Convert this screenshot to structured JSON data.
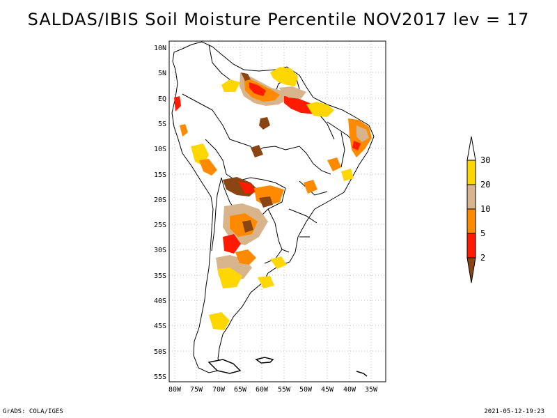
{
  "title": "SALDAS/IBIS Soil Moisture Percentile NOV2017 lev = 17",
  "footer": {
    "left": "GrADS: COLA/IGES",
    "right": "2021-05-12-19:23"
  },
  "axes": {
    "lat_labels": [
      "10N",
      "5N",
      "EQ",
      "5S",
      "10S",
      "15S",
      "20S",
      "25S",
      "30S",
      "35S",
      "40S",
      "45S",
      "50S",
      "55S"
    ],
    "lon_labels": [
      "80W",
      "75W",
      "70W",
      "65W",
      "60W",
      "55W",
      "50W",
      "45W",
      "40W",
      "35W"
    ]
  },
  "legend": {
    "labels": [
      "30",
      "20",
      "10",
      "5",
      "2"
    ],
    "colors": {
      "c30": "#ffd700",
      "c20": "#d8b48c",
      "c10": "#ff8a00",
      "c5": "#ff1a00",
      "c2": "#8b4513",
      "top": "#ffffff"
    }
  },
  "colors": {
    "gridline": "#bbbbbb",
    "border": "#000000"
  }
}
